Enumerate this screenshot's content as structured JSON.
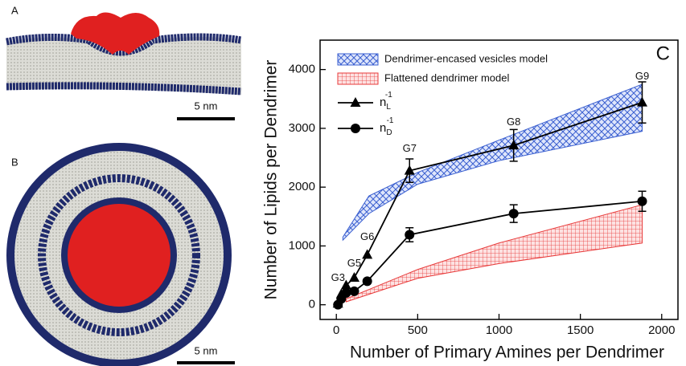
{
  "panels": [
    {
      "label": "A",
      "scale": "5 nm"
    },
    {
      "label": "B",
      "scale": "5 nm"
    }
  ],
  "chart_data": {
    "type": "line",
    "panel_label": "C",
    "xlabel": "Number of Primary Amines per Dendrimer",
    "ylabel": "Number of Lipids per Dendrimer",
    "xlim": [
      -100,
      2100
    ],
    "ylim": [
      -250,
      4500
    ],
    "xticks": [
      0,
      500,
      1000,
      1500,
      2000
    ],
    "yticks": [
      0,
      1000,
      2000,
      3000,
      4000
    ],
    "legend": "upper left",
    "bands": [
      {
        "name": "Dendrimer-encased vesicles model",
        "color": "#3a5fd0",
        "x": [
          40,
          200,
          500,
          1000,
          1880
        ],
        "lower": [
          1100,
          1550,
          2050,
          2450,
          2950
        ],
        "upper": [
          1150,
          1850,
          2250,
          2800,
          3750
        ]
      },
      {
        "name": "Flattened dendrimer model",
        "color": "#e83a3a",
        "x": [
          60,
          500,
          1000,
          1880
        ],
        "lower": [
          50,
          450,
          700,
          1050
        ],
        "upper": [
          100,
          600,
          1050,
          1700
        ]
      }
    ],
    "series": [
      {
        "name": "n",
        "name_sub": "L",
        "name_sup": "-1",
        "marker": "triangle",
        "color": "#000000",
        "x": [
          10,
          30,
          60,
          110,
          190,
          450,
          1090,
          1880
        ],
        "values": [
          20,
          180,
          330,
          460,
          850,
          2280,
          2710,
          3440
        ],
        "errors": [
          null,
          null,
          null,
          null,
          null,
          200,
          270,
          350
        ]
      },
      {
        "name": "n",
        "name_sub": "D",
        "name_sup": "-1",
        "marker": "circle",
        "color": "#000000",
        "x": [
          10,
          30,
          60,
          110,
          190,
          450,
          1090,
          1880
        ],
        "values": [
          0,
          100,
          200,
          230,
          400,
          1190,
          1550,
          1760
        ],
        "errors": [
          null,
          null,
          null,
          null,
          null,
          120,
          150,
          170
        ]
      }
    ],
    "annotations": [
      {
        "text": "G3",
        "x": 10,
        "y": 450
      },
      {
        "text": "G5",
        "x": 110,
        "y": 700
      },
      {
        "text": "G6",
        "x": 190,
        "y": 1150
      },
      {
        "text": "G7",
        "x": 450,
        "y": 2650
      },
      {
        "text": "G8",
        "x": 1090,
        "y": 3100
      },
      {
        "text": "G9",
        "x": 1880,
        "y": 3880
      }
    ]
  }
}
